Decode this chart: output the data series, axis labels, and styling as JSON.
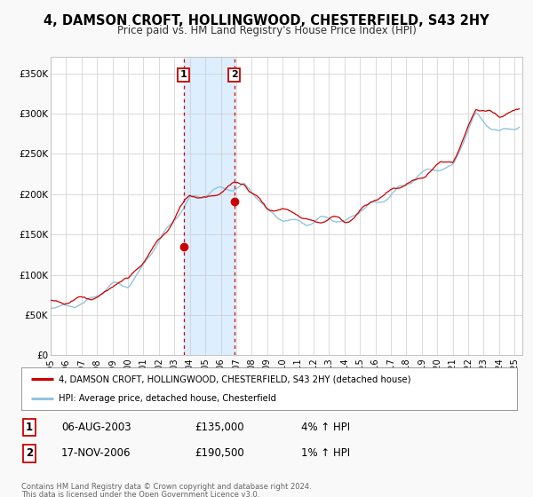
{
  "title": "4, DAMSON CROFT, HOLLINGWOOD, CHESTERFIELD, S43 2HY",
  "subtitle": "Price paid vs. HM Land Registry's House Price Index (HPI)",
  "xlim": [
    1995.0,
    2025.5
  ],
  "ylim": [
    0,
    370000
  ],
  "yticks": [
    0,
    50000,
    100000,
    150000,
    200000,
    250000,
    300000,
    350000
  ],
  "ytick_labels": [
    "£0",
    "£50K",
    "£100K",
    "£150K",
    "£200K",
    "£250K",
    "£300K",
    "£350K"
  ],
  "xtick_years": [
    1995,
    1996,
    1997,
    1998,
    1999,
    2000,
    2001,
    2002,
    2003,
    2004,
    2005,
    2006,
    2007,
    2008,
    2009,
    2010,
    2011,
    2012,
    2013,
    2014,
    2015,
    2016,
    2017,
    2018,
    2019,
    2020,
    2021,
    2022,
    2023,
    2024,
    2025
  ],
  "sale1_x": 2003.595,
  "sale1_y": 135000,
  "sale1_label": "1",
  "sale1_date": "06-AUG-2003",
  "sale1_price": "£135,000",
  "sale1_hpi": "4% ↑ HPI",
  "sale2_x": 2006.88,
  "sale2_y": 190500,
  "sale2_label": "2",
  "sale2_date": "17-NOV-2006",
  "sale2_price": "£190,500",
  "sale2_hpi": "1% ↑ HPI",
  "hpi_color": "#92C5DE",
  "price_color": "#CC0000",
  "shade_color": "#DDEEFF",
  "vline_color": "#CC0000",
  "legend_label_price": "4, DAMSON CROFT, HOLLINGWOOD, CHESTERFIELD, S43 2HY (detached house)",
  "legend_label_hpi": "HPI: Average price, detached house, Chesterfield",
  "footer1": "Contains HM Land Registry data © Crown copyright and database right 2024.",
  "footer2": "This data is licensed under the Open Government Licence v3.0.",
  "background_color": "#f9f9f9",
  "plot_bg_color": "#ffffff"
}
